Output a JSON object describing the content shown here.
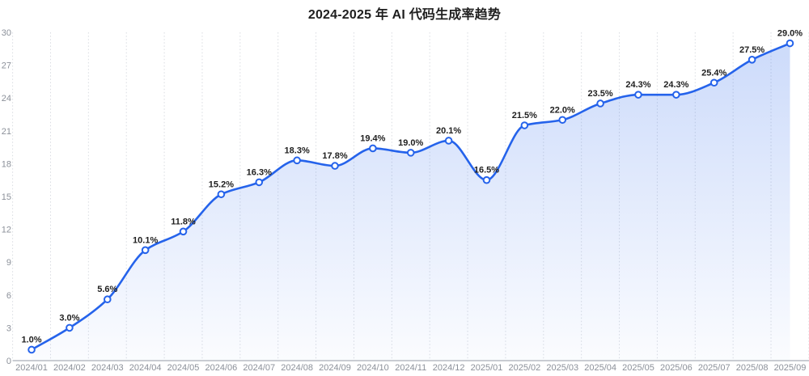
{
  "chart_data": {
    "type": "area",
    "title": "2024-2025 年 AI 代码生成率趋势",
    "categories": [
      "2024/01",
      "2024/02",
      "2024/03",
      "2024/04",
      "2024/05",
      "2024/06",
      "2024/07",
      "2024/08",
      "2024/09",
      "2024/10",
      "2024/11",
      "2024/12",
      "2025/01",
      "2025/02",
      "2025/03",
      "2025/04",
      "2025/05",
      "2025/06",
      "2025/07",
      "2025/08",
      "2025/09"
    ],
    "values": [
      1.0,
      3.0,
      5.6,
      10.1,
      11.8,
      15.2,
      16.3,
      18.3,
      17.8,
      19.4,
      19.0,
      20.1,
      16.5,
      21.5,
      22.0,
      23.5,
      24.3,
      24.3,
      25.4,
      27.5,
      29.0
    ],
    "point_labels": [
      "1.0%",
      "3.0%",
      "5.6%",
      "10.1%",
      "11.8%",
      "15.2%",
      "16.3%",
      "18.3%",
      "17.8%",
      "19.4%",
      "19.0%",
      "20.1%",
      "16.5%",
      "21.5%",
      "22.0%",
      "23.5%",
      "24.3%",
      "24.3%",
      "25.4%",
      "27.5%",
      "29.0%"
    ],
    "unit": "%",
    "xlabel": "",
    "ylabel": "",
    "ylim": [
      0,
      30
    ],
    "y_ticks": [
      0,
      3,
      6,
      9,
      12,
      15,
      18,
      21,
      24,
      27,
      30
    ],
    "grid": "vertical-dotted",
    "legend_position": "none",
    "smooth": true,
    "colors": {
      "line": "#2563eb",
      "marker_fill": "#ffffff",
      "area_top": "rgba(37,99,235,0.24)",
      "area_bottom": "rgba(37,99,235,0.02)",
      "grid_line": "#d9dce1",
      "axis_line": "#c9ccd2",
      "axis_label": "#8b9099",
      "data_label": "#1f1f1f",
      "title": "#1f1f1f",
      "background": "#ffffff"
    }
  }
}
